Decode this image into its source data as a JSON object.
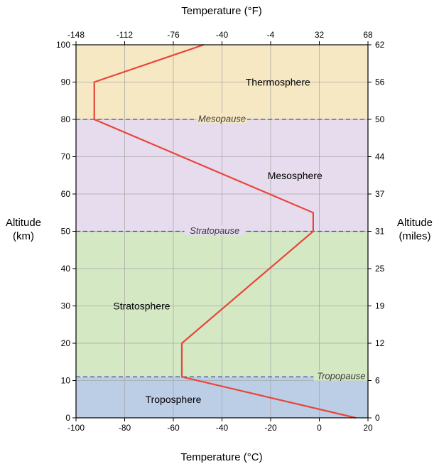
{
  "chart_data": {
    "type": "line",
    "title": "",
    "xlabel_bottom": "Temperature (°C)",
    "xlabel_top": "Temperature (°F)",
    "ylabel_left": [
      "Altitude",
      "(km)"
    ],
    "ylabel_right": [
      "Altitude",
      "(miles)"
    ],
    "xlim": [
      -100,
      20
    ],
    "ylim": [
      0,
      100
    ],
    "grid": true,
    "bottom_ticks": [
      {
        "value": -100,
        "label": "-100"
      },
      {
        "value": -80,
        "label": "-80"
      },
      {
        "value": -60,
        "label": "-60"
      },
      {
        "value": -40,
        "label": "-40"
      },
      {
        "value": -20,
        "label": "-20"
      },
      {
        "value": 0,
        "label": "0"
      },
      {
        "value": 20,
        "label": "20"
      }
    ],
    "top_ticks": [
      {
        "value": -100,
        "label": "-148"
      },
      {
        "value": -80,
        "label": "-112"
      },
      {
        "value": -60,
        "label": "-76"
      },
      {
        "value": -40,
        "label": "-40"
      },
      {
        "value": -20,
        "label": "-4"
      },
      {
        "value": 0,
        "label": "32"
      },
      {
        "value": 20,
        "label": "68"
      }
    ],
    "left_ticks": [
      {
        "value": 0,
        "label": "0"
      },
      {
        "value": 10,
        "label": "10"
      },
      {
        "value": 20,
        "label": "20"
      },
      {
        "value": 30,
        "label": "30"
      },
      {
        "value": 40,
        "label": "40"
      },
      {
        "value": 50,
        "label": "50"
      },
      {
        "value": 60,
        "label": "60"
      },
      {
        "value": 70,
        "label": "70"
      },
      {
        "value": 80,
        "label": "80"
      },
      {
        "value": 90,
        "label": "90"
      },
      {
        "value": 100,
        "label": "100"
      }
    ],
    "right_ticks": [
      {
        "value": 0,
        "label": "0"
      },
      {
        "value": 10,
        "label": "6"
      },
      {
        "value": 20,
        "label": "12"
      },
      {
        "value": 30,
        "label": "19"
      },
      {
        "value": 40,
        "label": "25"
      },
      {
        "value": 50,
        "label": "31"
      },
      {
        "value": 60,
        "label": "37"
      },
      {
        "value": 70,
        "label": "44"
      },
      {
        "value": 80,
        "label": "50"
      },
      {
        "value": 90,
        "label": "56"
      },
      {
        "value": 100,
        "label": "62"
      }
    ],
    "layers": [
      {
        "name": "Troposphere",
        "from": 0,
        "to": 11,
        "color": "#bccde6",
        "label_x": -60,
        "label_y": 5
      },
      {
        "name": "Stratosphere",
        "from": 11,
        "to": 50,
        "color": "#d4e8c4",
        "label_x": -73,
        "label_y": 30
      },
      {
        "name": "Mesosphere",
        "from": 50,
        "to": 80,
        "color": "#e6dcee",
        "label_x": -10,
        "label_y": 65
      },
      {
        "name": "Thermosphere",
        "from": 80,
        "to": 100,
        "color": "#f7e8c4",
        "label_x": -17,
        "label_y": 90
      }
    ],
    "boundaries": [
      {
        "name": "Tropopause",
        "altitude": 11,
        "label_x": 9,
        "label_y": 11.3
      },
      {
        "name": "Stratopause",
        "altitude": 50,
        "label_x": -43,
        "label_y": 50.3
      },
      {
        "name": "Mesopause",
        "altitude": 80,
        "label_x": -40,
        "label_y": 80.3
      }
    ],
    "series": [
      {
        "color": "#e8463a",
        "x": [
          15,
          -56.5,
          -56.5,
          -2.5,
          -2.5,
          -92.5,
          -92.5,
          -47.5
        ],
        "y": [
          0,
          11,
          20,
          50,
          55,
          80,
          90,
          100
        ]
      }
    ]
  }
}
